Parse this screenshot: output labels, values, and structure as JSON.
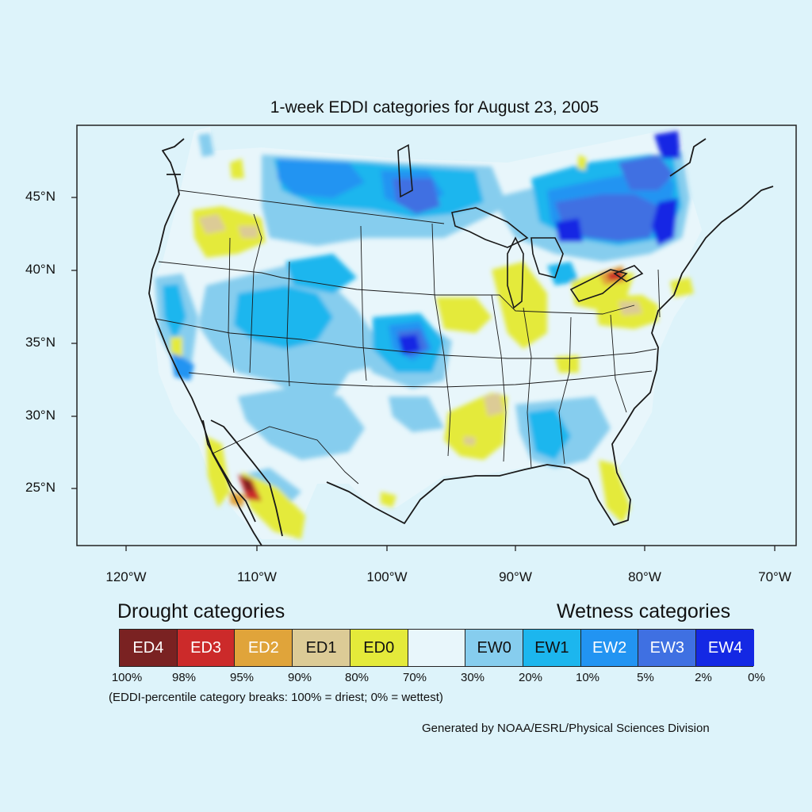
{
  "map": {
    "title": "1-week EDDI categories for August 23, 2005",
    "lat_labels": [
      "45°N",
      "40°N",
      "35°N",
      "30°N",
      "25°N"
    ],
    "lon_labels": [
      "120°W",
      "110°W",
      "100°W",
      "90°W",
      "80°W",
      "70°W"
    ],
    "lat_range": [
      21,
      50
    ],
    "lon_range": [
      -124,
      -68.5
    ],
    "background": "#ddf3fa",
    "neutral_fill": "#e8f6fb",
    "outline_color": "#1a1a1a"
  },
  "legend": {
    "drought_heading": "Drought categories",
    "wetness_heading": "Wetness categories",
    "categories": [
      {
        "label": "ED4",
        "color": "#7a2222",
        "text_color": "#ffffff"
      },
      {
        "label": "ED3",
        "color": "#cc2a2a",
        "text_color": "#ffffff"
      },
      {
        "label": "ED2",
        "color": "#e0a43a",
        "text_color": "#ffffff"
      },
      {
        "label": "ED1",
        "color": "#dccb96",
        "text_color": "#111111"
      },
      {
        "label": "ED0",
        "color": "#e4ea3a",
        "text_color": "#111111"
      },
      {
        "label": "",
        "color": "#e8f6fb",
        "text_color": "#111111"
      },
      {
        "label": "EW0",
        "color": "#86cdee",
        "text_color": "#111111"
      },
      {
        "label": "EW1",
        "color": "#1cb6ee",
        "text_color": "#111111"
      },
      {
        "label": "EW2",
        "color": "#2294f2",
        "text_color": "#ffffff"
      },
      {
        "label": "EW3",
        "color": "#3f70e2",
        "text_color": "#ffffff"
      },
      {
        "label": "EW4",
        "color": "#1428e4",
        "text_color": "#ffffff"
      }
    ],
    "percentiles": [
      "100%",
      "98%",
      "95%",
      "90%",
      "80%",
      "70%",
      "30%",
      "20%",
      "10%",
      "5%",
      "2%",
      "0%"
    ],
    "note": "(EDDI-percentile category breaks: 100% = driest; 0% = wettest)"
  },
  "credit": "Generated by NOAA/ESRL/Physical Sciences Division"
}
